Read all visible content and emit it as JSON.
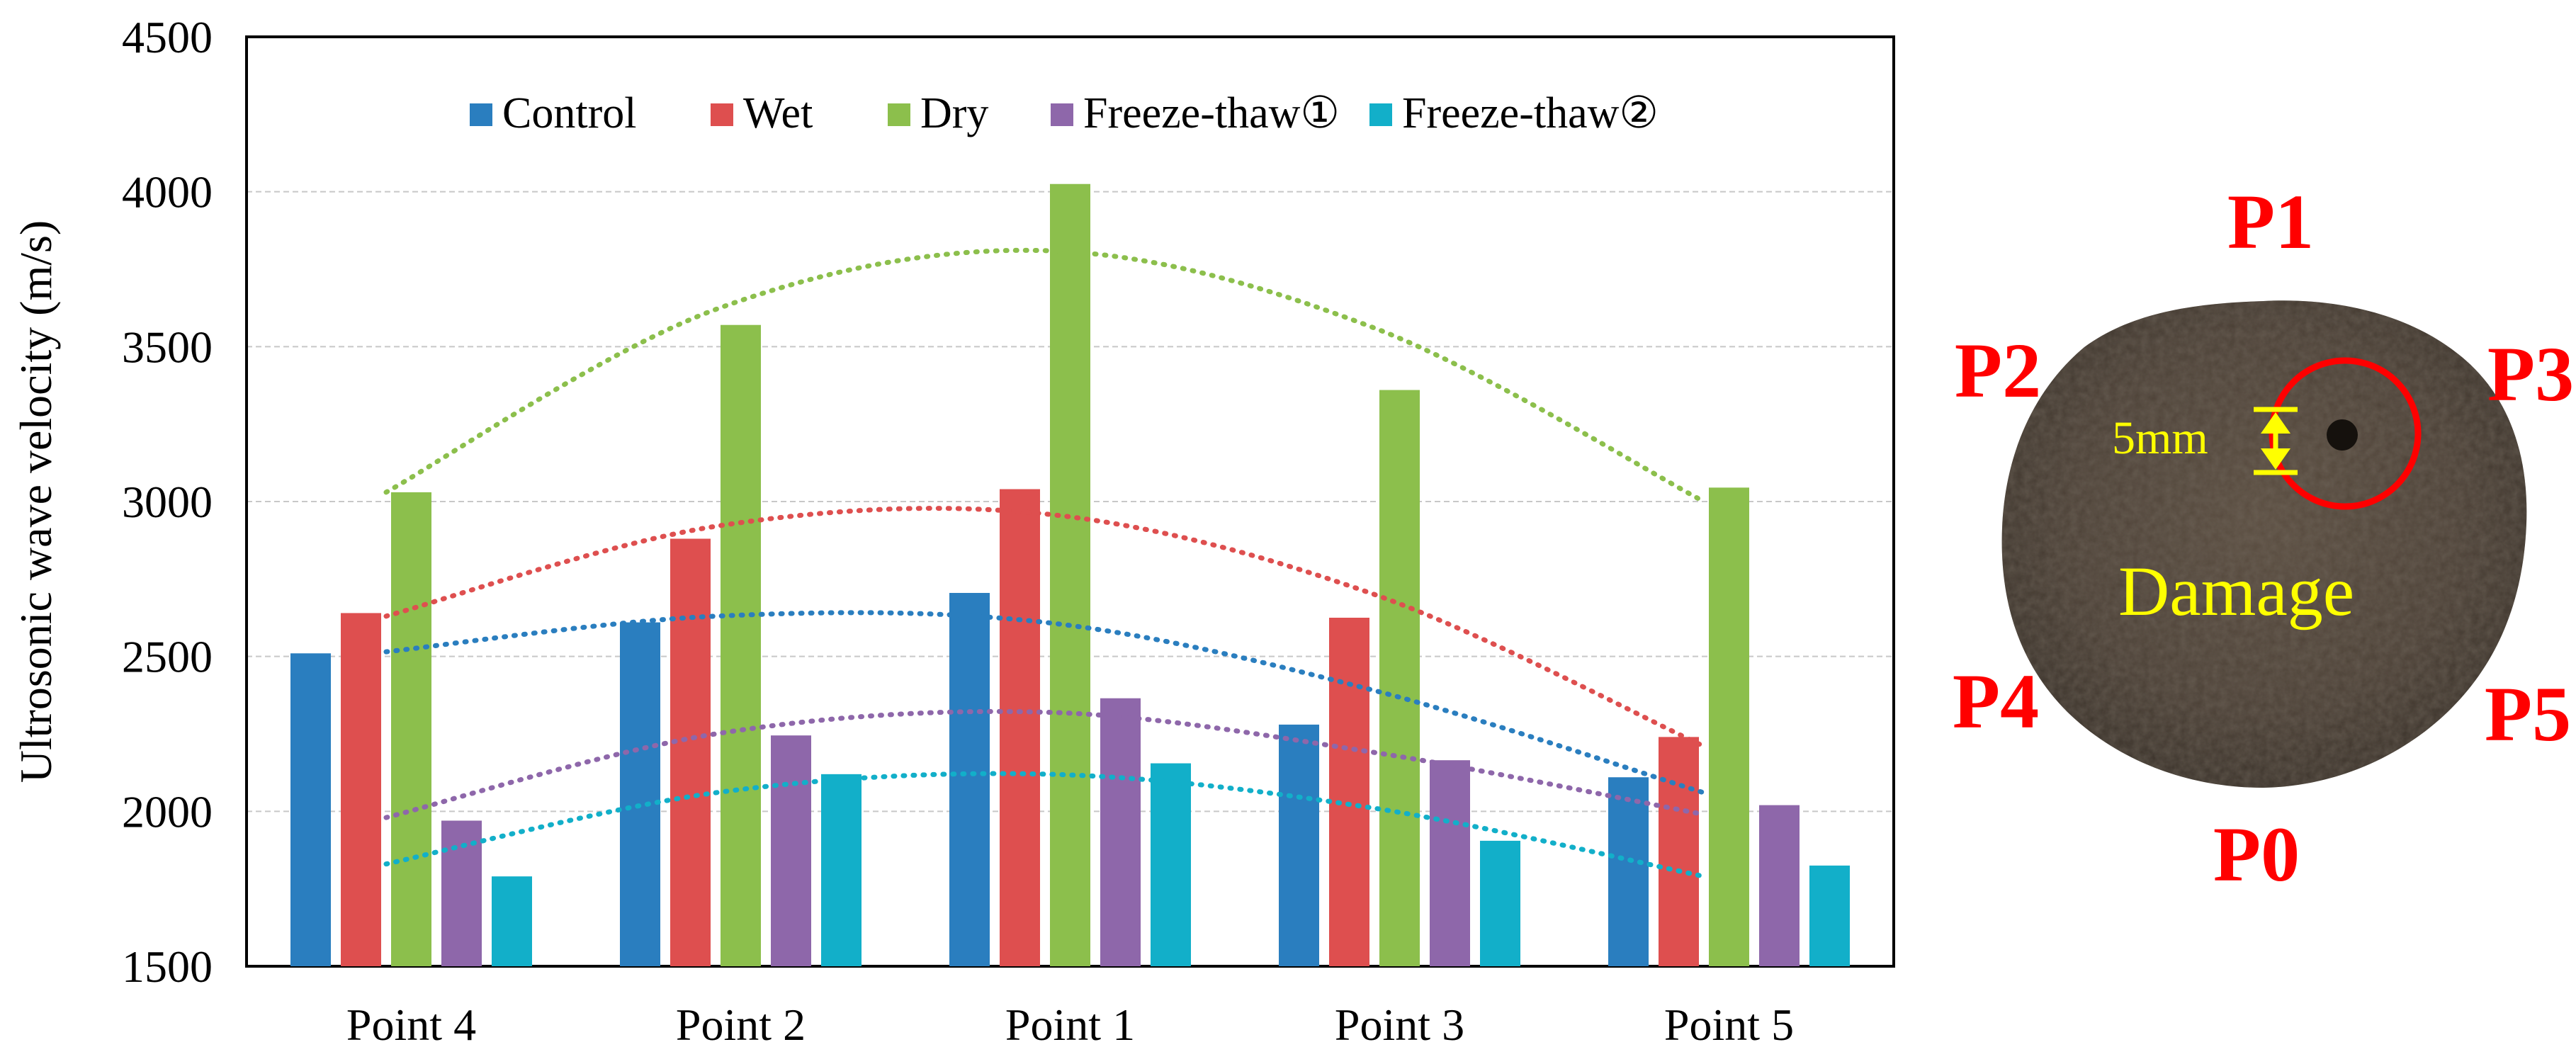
{
  "chart_data": {
    "type": "bar",
    "title": "",
    "xlabel": "",
    "ylabel": "Ultrosonic wave velocity (m/s)",
    "ylim": [
      1500,
      4500
    ],
    "yticks": [
      "1500",
      "2000",
      "2500",
      "3000",
      "3500",
      "4000",
      "4500"
    ],
    "grid": true,
    "legend_position": "top",
    "categories": [
      "Point 4",
      "Point 2",
      "Point 1",
      "Point 3",
      "Point 5"
    ],
    "series": [
      {
        "name": "Control",
        "color": "#2a7ebf",
        "values": [
          2510,
          2610,
          2705,
          2280,
          2110
        ]
      },
      {
        "name": "Wet",
        "color": "#de4f4f",
        "values": [
          2640,
          2880,
          3040,
          2625,
          2240
        ]
      },
      {
        "name": "Dry",
        "color": "#8cbf4c",
        "values": [
          3030,
          3570,
          4025,
          3360,
          3045
        ]
      },
      {
        "name": "Freeze-thaw①",
        "color": "#8e67aa",
        "values": [
          1970,
          2245,
          2365,
          2165,
          2020
        ]
      },
      {
        "name": "Freeze-thaw②",
        "color": "#12afc9",
        "values": [
          1790,
          2120,
          2155,
          1905,
          1825
        ]
      }
    ],
    "trendlines": [
      {
        "series": "Dry",
        "color": "#8cbf4c",
        "values": [
          3030,
          3620,
          3810,
          3560,
          3000
        ]
      },
      {
        "series": "Wet",
        "color": "#de4f4f",
        "values": [
          2630,
          2920,
          2960,
          2700,
          2210
        ]
      },
      {
        "series": "Control",
        "color": "#2a7ebf",
        "values": [
          2515,
          2630,
          2610,
          2390,
          2060
        ]
      },
      {
        "series": "Freeze-thaw①",
        "color": "#8e67aa",
        "values": [
          1980,
          2250,
          2320,
          2190,
          1990
        ]
      },
      {
        "series": "Freeze-thaw②",
        "color": "#12afc9",
        "values": [
          1830,
          2060,
          2120,
          2010,
          1790
        ]
      }
    ]
  },
  "specimen": {
    "labels": [
      "P1",
      "P2",
      "P3",
      "P4",
      "P5",
      "P0"
    ],
    "damage_label": "Damage",
    "scale_label": "5mm",
    "colors": {
      "label": "#ff0000",
      "annotation": "#ffff00",
      "soil": "#4a3f33"
    }
  }
}
